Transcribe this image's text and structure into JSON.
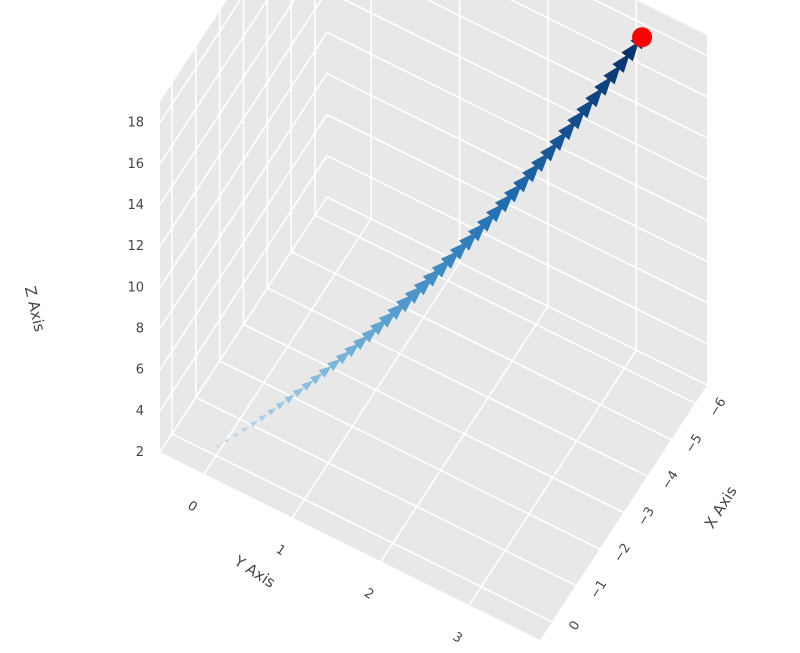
{
  "chart_data": {
    "type": "cone3d",
    "scene": {
      "x_axis": {
        "title": "X Axis",
        "range": [
          -6.5,
          0.5
        ],
        "ticks": [
          -6,
          -5,
          -4,
          -3,
          -2,
          -1,
          0
        ]
      },
      "y_axis": {
        "title": "Y Axis",
        "range": [
          -0.5,
          3.8
        ],
        "ticks": [
          0,
          1,
          2,
          3
        ]
      },
      "z_axis": {
        "title": "Z Axis",
        "range": [
          2,
          19
        ],
        "ticks": [
          2,
          4,
          6,
          8,
          10,
          12,
          14,
          16,
          18
        ]
      },
      "background_color": "#e8e8e8",
      "grid_color": "#ffffff"
    },
    "trajectory": {
      "start": {
        "x": -0.1,
        "y": 0.0,
        "z": 2.3
      },
      "end": {
        "x": -6.0,
        "y": 3.2,
        "z": 18.5
      },
      "cone_count": 48,
      "colorscale": [
        "#c6dbef",
        "#6baed6",
        "#2171b5",
        "#08306b"
      ]
    },
    "end_marker": {
      "x": -6.0,
      "y": 3.2,
      "z": 18.5,
      "color": "#ff0000"
    }
  }
}
